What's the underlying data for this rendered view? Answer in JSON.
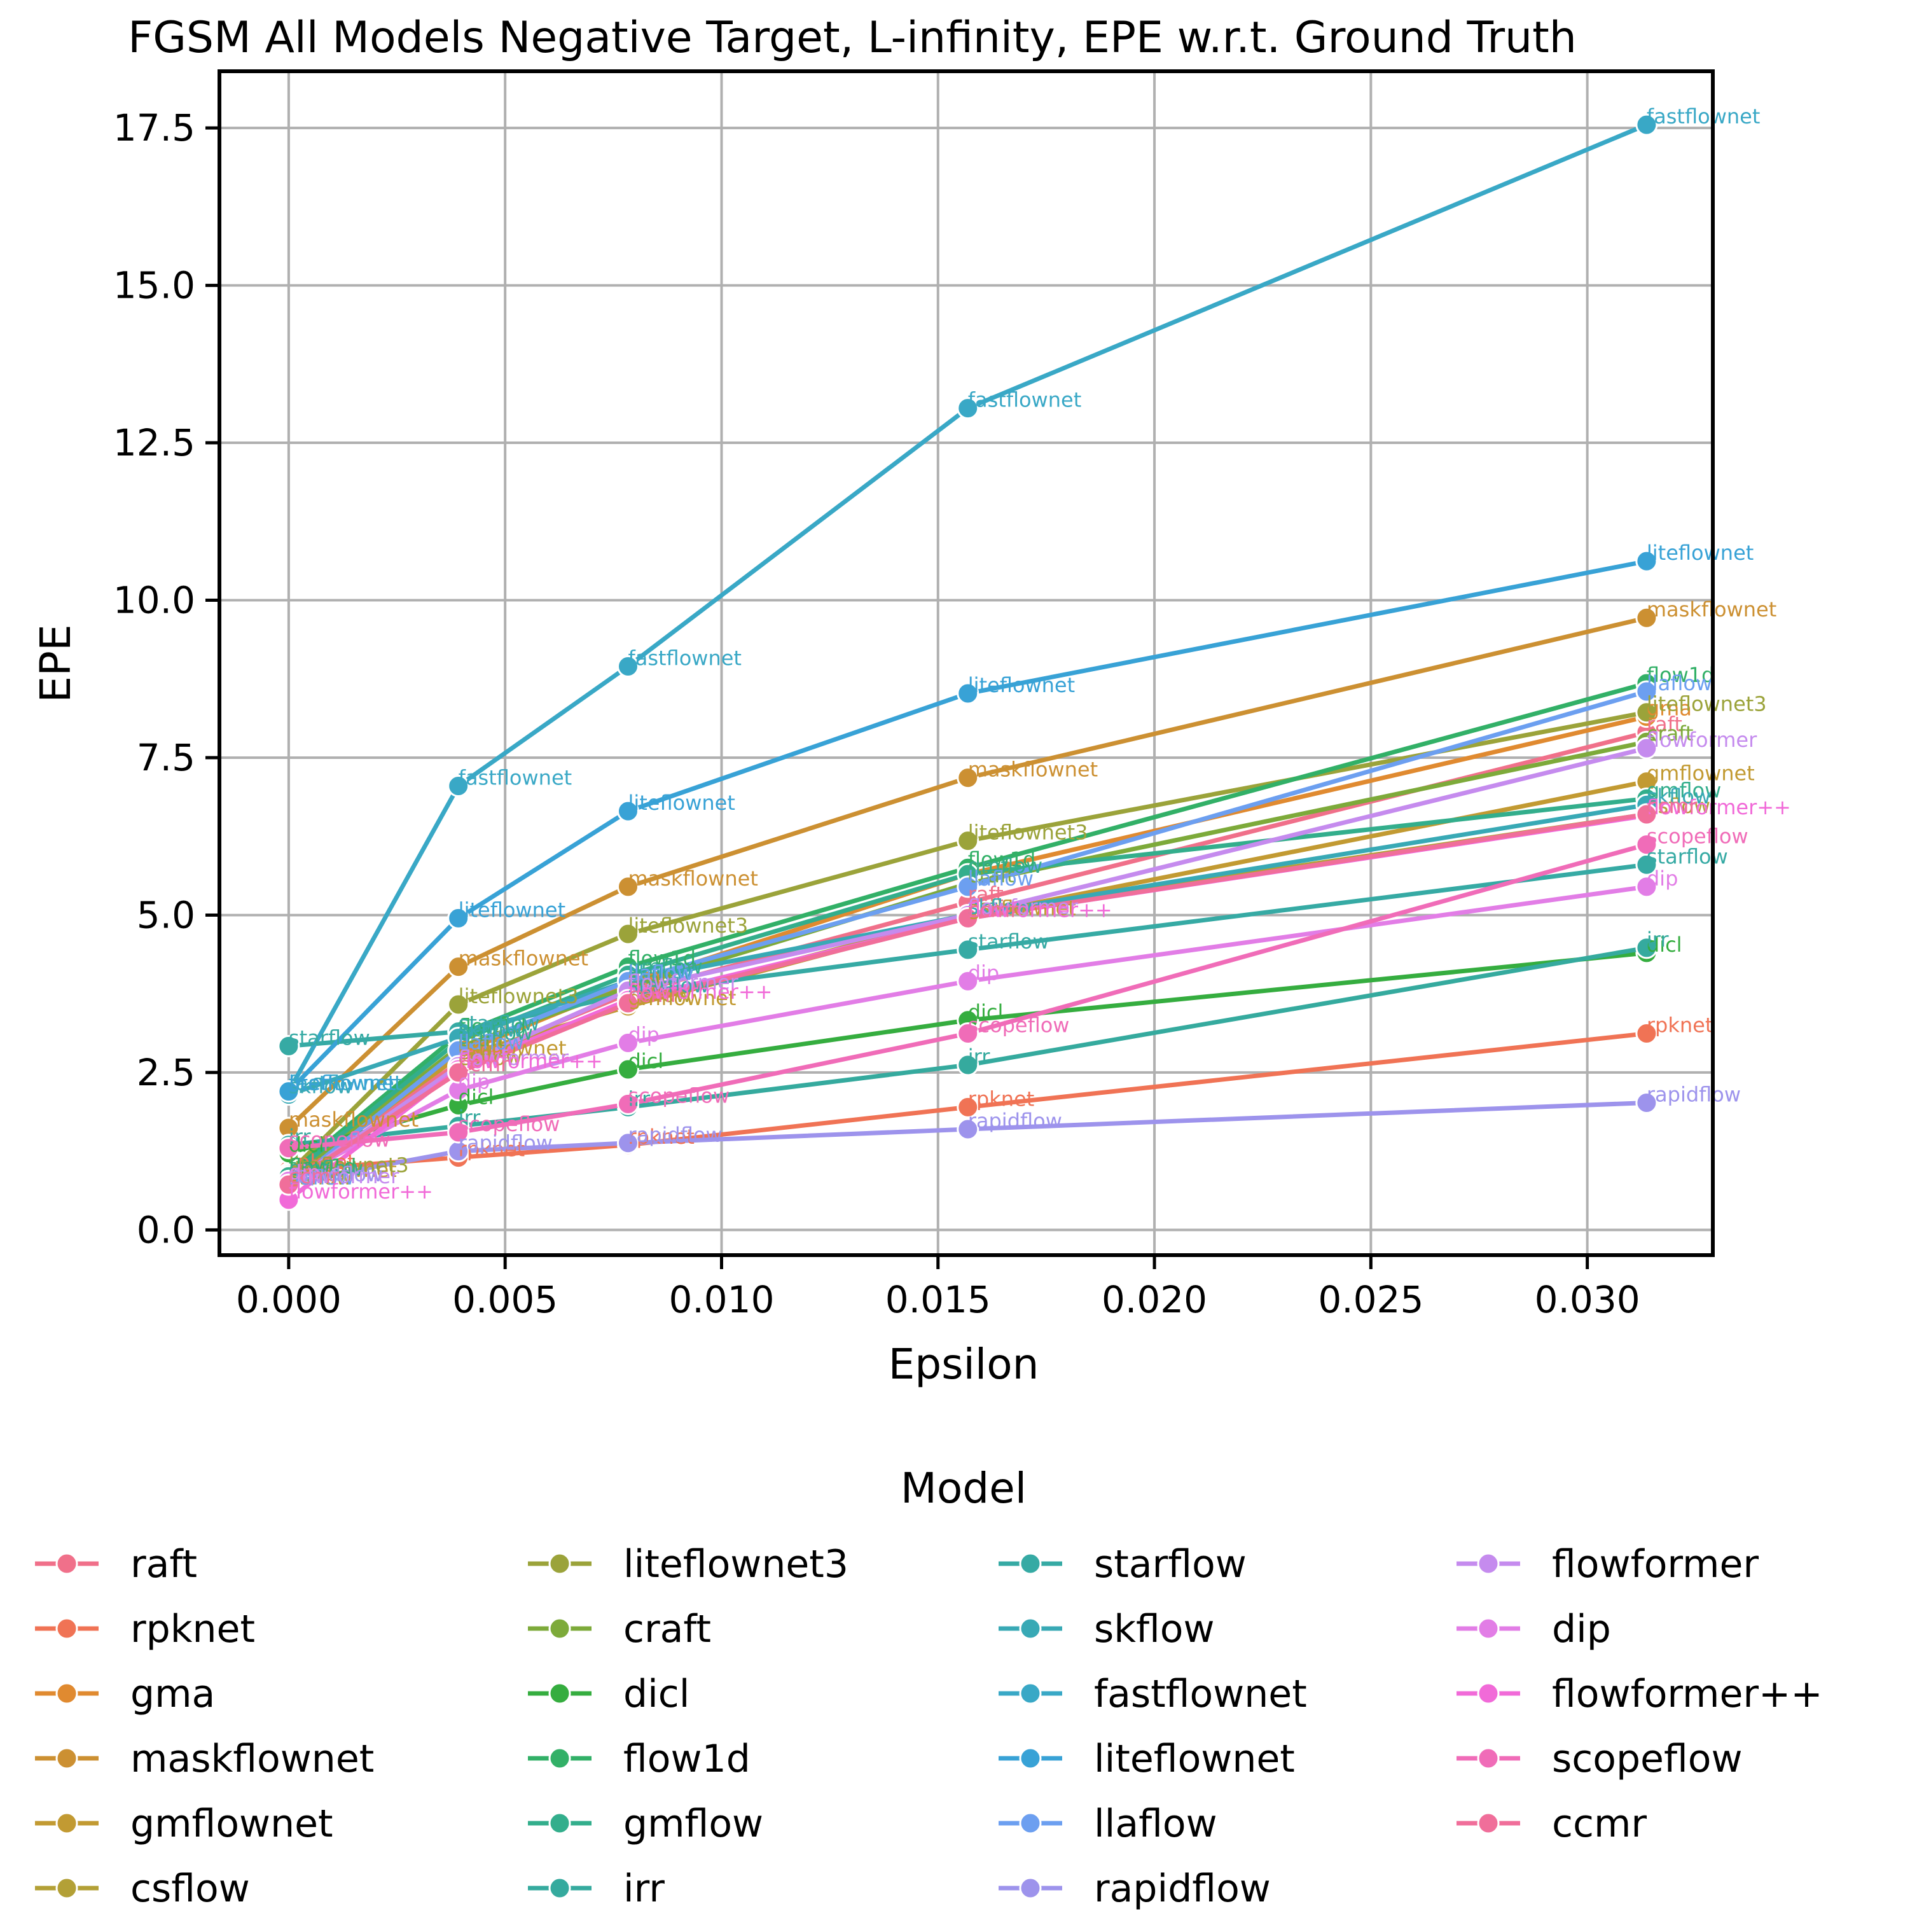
{
  "chart_data": {
    "type": "line",
    "title": "FGSM All Models Negative Target, L-infinity, EPE w.r.t. Ground Truth",
    "xlabel": "Epsilon",
    "ylabel": "EPE",
    "xlim": [
      -0.0016,
      0.0329
    ],
    "ylim": [
      -0.4,
      18.4
    ],
    "xticks": [
      0.0,
      0.005,
      0.01,
      0.015,
      0.02,
      0.025,
      0.03
    ],
    "xtick_labels": [
      "0.000",
      "0.005",
      "0.010",
      "0.015",
      "0.020",
      "0.025",
      "0.030"
    ],
    "yticks": [
      0.0,
      2.5,
      5.0,
      7.5,
      10.0,
      12.5,
      15.0,
      17.5
    ],
    "ytick_labels": [
      "0.0",
      "2.5",
      "5.0",
      "7.5",
      "10.0",
      "12.5",
      "15.0",
      "17.5"
    ],
    "grid": true,
    "legend": {
      "title": "Model",
      "placement": "below",
      "columns": 4
    },
    "x": [
      0.0,
      0.00392,
      0.00784,
      0.01569,
      0.03137
    ],
    "series": [
      {
        "name": "raft",
        "color": "#f0708a",
        "values": [
          0.85,
          2.65,
          3.75,
          5.2,
          7.9
        ]
      },
      {
        "name": "rpknet",
        "color": "#f07355",
        "values": [
          0.95,
          1.15,
          1.35,
          1.95,
          3.12
        ]
      },
      {
        "name": "gma",
        "color": "#e08a30",
        "values": [
          0.75,
          2.8,
          3.9,
          5.65,
          8.15
        ]
      },
      {
        "name": "maskflownet",
        "color": "#cc9032",
        "values": [
          1.62,
          4.18,
          5.45,
          7.18,
          9.72
        ]
      },
      {
        "name": "gmflownet",
        "color": "#c29a32",
        "values": [
          0.82,
          2.75,
          3.55,
          4.98,
          7.12
        ]
      },
      {
        "name": "csflow",
        "color": "#b3a036",
        "values": [
          0.7,
          2.6,
          3.6,
          5.0,
          6.6
        ]
      },
      {
        "name": "liteflownet3",
        "color": "#9ba33a",
        "values": [
          0.9,
          3.58,
          4.7,
          6.18,
          8.22
        ]
      },
      {
        "name": "craft",
        "color": "#7daa3a",
        "values": [
          0.8,
          2.9,
          3.85,
          5.5,
          7.75
        ]
      },
      {
        "name": "dicl",
        "color": "#35ad3f",
        "values": [
          1.22,
          1.98,
          2.55,
          3.33,
          4.4
        ]
      },
      {
        "name": "flow1d",
        "color": "#32b067",
        "values": [
          0.88,
          3.1,
          4.18,
          5.75,
          8.68
        ]
      },
      {
        "name": "gmflow",
        "color": "#33ae8c",
        "values": [
          0.85,
          3.0,
          4.05,
          5.65,
          6.85
        ]
      },
      {
        "name": "irr",
        "color": "#35aa9e",
        "values": [
          1.35,
          1.65,
          1.95,
          2.62,
          4.48
        ]
      },
      {
        "name": "starflow",
        "color": "#36aaa4",
        "values": [
          2.92,
          3.15,
          3.75,
          4.45,
          5.8
        ]
      },
      {
        "name": "skflow",
        "color": "#38a9b5",
        "values": [
          2.15,
          3.05,
          3.95,
          5.0,
          6.75
        ]
      },
      {
        "name": "fastflownet",
        "color": "#39a8c6",
        "values": [
          2.2,
          7.05,
          8.95,
          13.05,
          17.55
        ]
      },
      {
        "name": "liteflownet",
        "color": "#38a2d6",
        "values": [
          2.2,
          4.95,
          6.65,
          8.52,
          10.62
        ]
      },
      {
        "name": "llaflow",
        "color": "#6c9ff0",
        "values": [
          0.7,
          2.85,
          3.95,
          5.45,
          8.55
        ]
      },
      {
        "name": "rapidflow",
        "color": "#9d93ec",
        "values": [
          0.75,
          1.25,
          1.38,
          1.6,
          2.02
        ]
      },
      {
        "name": "flowformer",
        "color": "#c58bee",
        "values": [
          0.72,
          2.6,
          3.8,
          5.0,
          7.65
        ]
      },
      {
        "name": "dip",
        "color": "#e27de6",
        "values": [
          0.78,
          2.22,
          2.97,
          3.95,
          5.45
        ]
      },
      {
        "name": "flowformer++",
        "color": "#f16ad8",
        "values": [
          0.48,
          2.55,
          3.65,
          4.95,
          6.58
        ]
      },
      {
        "name": "scopeflow",
        "color": "#f06cb8",
        "values": [
          1.3,
          1.55,
          2.0,
          3.12,
          6.12
        ]
      },
      {
        "name": "ccmr",
        "color": "#f06e9a",
        "values": [
          0.72,
          2.5,
          3.6,
          4.95,
          6.6
        ]
      }
    ]
  }
}
